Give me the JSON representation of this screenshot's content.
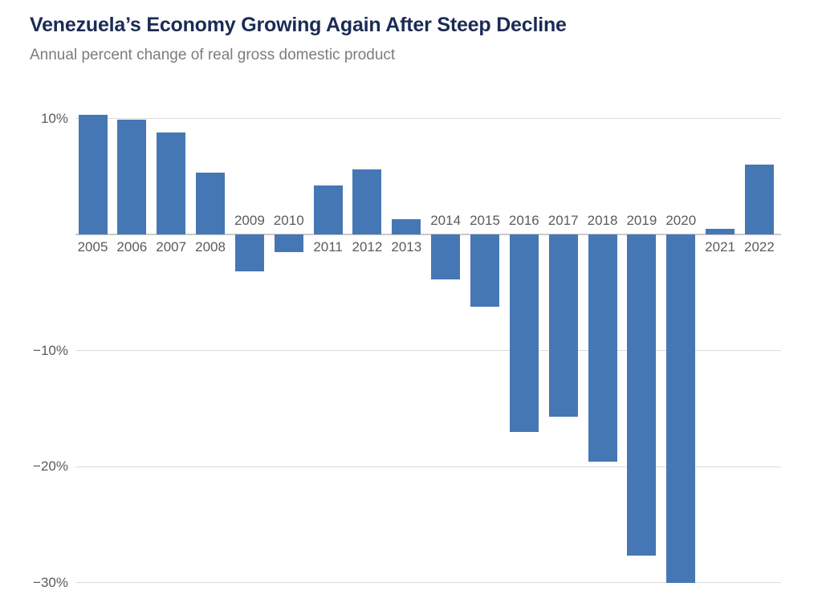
{
  "header": {
    "title": "Venezuela’s Economy Growing Again After Steep Decline",
    "subtitle": "Annual percent change of real gross domestic product"
  },
  "colors": {
    "bar": "#4677B5",
    "title": "#1B2B55",
    "subtitle": "#7A7C7E",
    "axis_label": "#595C5F",
    "gridline": "#DCDCDC",
    "zero_line": "#C9C9C9",
    "background": "#FFFFFF"
  },
  "chart_data": {
    "type": "bar",
    "title": "Venezuela’s Economy Growing Again After Steep Decline",
    "subtitle": "Annual percent change of real gross domestic product",
    "categories": [
      "2005",
      "2006",
      "2007",
      "2008",
      "2009",
      "2010",
      "2011",
      "2012",
      "2013",
      "2014",
      "2015",
      "2016",
      "2017",
      "2018",
      "2019",
      "2020",
      "2021",
      "2022"
    ],
    "values": [
      10.3,
      9.9,
      8.8,
      5.3,
      -3.2,
      -1.5,
      4.2,
      5.6,
      1.3,
      -3.9,
      -6.2,
      -17.0,
      -15.7,
      -19.6,
      -27.7,
      -30.0,
      0.5,
      6.0
    ],
    "xlabel": "",
    "ylabel": "",
    "ylim": [
      -30.5,
      10.5
    ],
    "yticks": [
      {
        "value": 10,
        "label": "10%"
      },
      {
        "value": 0,
        "label": ""
      },
      {
        "value": -10,
        "label": "−10%"
      },
      {
        "value": -20,
        "label": "−20%"
      },
      {
        "value": -30,
        "label": "−30%"
      }
    ],
    "grid": "horizontal",
    "legend": "none",
    "bar_color": "#4677B5",
    "x_label_placement": "at zero axis, opposite side of each bar"
  }
}
